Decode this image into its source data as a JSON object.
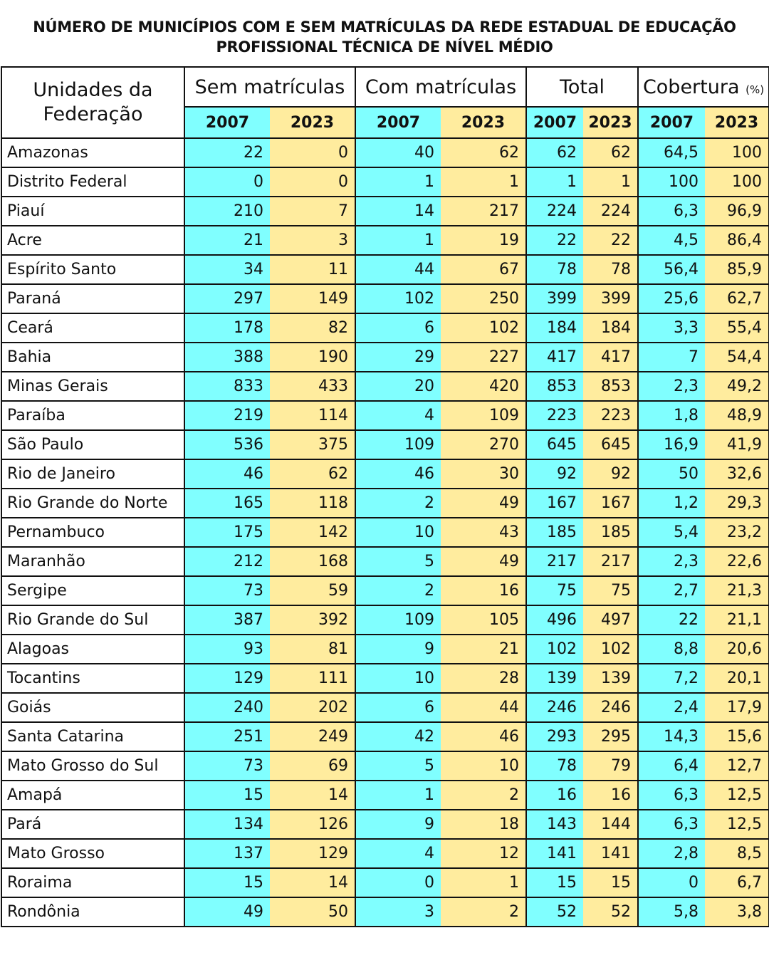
{
  "title_line1": "NÚMERO DE MUNICÍPIOS COM E SEM MATRÍCULAS DA REDE ESTADUAL DE EDUCAÇÃO",
  "title_line2": "PROFISSIONAL TÉCNICA DE NÍVEL MÉDIO",
  "colors": {
    "year_2007": "#80ffff",
    "year_2023": "#ffec9e",
    "border": "#111111"
  },
  "chart_data": {
    "type": "table",
    "row_header_label_line1": "Unidades da",
    "row_header_label_line2": "Federação",
    "groups": [
      {
        "label": "Sem matrículas",
        "unit": ""
      },
      {
        "label": "Com matrículas",
        "unit": ""
      },
      {
        "label": "Total",
        "unit": ""
      },
      {
        "label": "Cobertura",
        "unit": "(%)"
      }
    ],
    "years": [
      "2007",
      "2023"
    ],
    "rows": [
      {
        "uf": "Amazonas",
        "values": [
          "22",
          "0",
          "40",
          "62",
          "62",
          "62",
          "64,5",
          "100"
        ]
      },
      {
        "uf": "Distrito Federal",
        "values": [
          "0",
          "0",
          "1",
          "1",
          "1",
          "1",
          "100",
          "100"
        ]
      },
      {
        "uf": "Piauí",
        "values": [
          "210",
          "7",
          "14",
          "217",
          "224",
          "224",
          "6,3",
          "96,9"
        ]
      },
      {
        "uf": "Acre",
        "values": [
          "21",
          "3",
          "1",
          "19",
          "22",
          "22",
          "4,5",
          "86,4"
        ]
      },
      {
        "uf": "Espírito Santo",
        "values": [
          "34",
          "11",
          "44",
          "67",
          "78",
          "78",
          "56,4",
          "85,9"
        ]
      },
      {
        "uf": "Paraná",
        "values": [
          "297",
          "149",
          "102",
          "250",
          "399",
          "399",
          "25,6",
          "62,7"
        ]
      },
      {
        "uf": "Ceará",
        "values": [
          "178",
          "82",
          "6",
          "102",
          "184",
          "184",
          "3,3",
          "55,4"
        ]
      },
      {
        "uf": "Bahia",
        "values": [
          "388",
          "190",
          "29",
          "227",
          "417",
          "417",
          "7",
          "54,4"
        ]
      },
      {
        "uf": "Minas Gerais",
        "values": [
          "833",
          "433",
          "20",
          "420",
          "853",
          "853",
          "2,3",
          "49,2"
        ]
      },
      {
        "uf": "Paraíba",
        "values": [
          "219",
          "114",
          "4",
          "109",
          "223",
          "223",
          "1,8",
          "48,9"
        ]
      },
      {
        "uf": "São Paulo",
        "values": [
          "536",
          "375",
          "109",
          "270",
          "645",
          "645",
          "16,9",
          "41,9"
        ]
      },
      {
        "uf": "Rio de Janeiro",
        "values": [
          "46",
          "62",
          "46",
          "30",
          "92",
          "92",
          "50",
          "32,6"
        ]
      },
      {
        "uf": "Rio Grande do Norte",
        "values": [
          "165",
          "118",
          "2",
          "49",
          "167",
          "167",
          "1,2",
          "29,3"
        ]
      },
      {
        "uf": "Pernambuco",
        "values": [
          "175",
          "142",
          "10",
          "43",
          "185",
          "185",
          "5,4",
          "23,2"
        ]
      },
      {
        "uf": "Maranhão",
        "values": [
          "212",
          "168",
          "5",
          "49",
          "217",
          "217",
          "2,3",
          "22,6"
        ]
      },
      {
        "uf": "Sergipe",
        "values": [
          "73",
          "59",
          "2",
          "16",
          "75",
          "75",
          "2,7",
          "21,3"
        ]
      },
      {
        "uf": "Rio Grande do Sul",
        "values": [
          "387",
          "392",
          "109",
          "105",
          "496",
          "497",
          "22",
          "21,1"
        ]
      },
      {
        "uf": "Alagoas",
        "values": [
          "93",
          "81",
          "9",
          "21",
          "102",
          "102",
          "8,8",
          "20,6"
        ]
      },
      {
        "uf": "Tocantins",
        "values": [
          "129",
          "111",
          "10",
          "28",
          "139",
          "139",
          "7,2",
          "20,1"
        ]
      },
      {
        "uf": "Goiás",
        "values": [
          "240",
          "202",
          "6",
          "44",
          "246",
          "246",
          "2,4",
          "17,9"
        ]
      },
      {
        "uf": "Santa Catarina",
        "values": [
          "251",
          "249",
          "42",
          "46",
          "293",
          "295",
          "14,3",
          "15,6"
        ]
      },
      {
        "uf": "Mato Grosso do Sul",
        "values": [
          "73",
          "69",
          "5",
          "10",
          "78",
          "79",
          "6,4",
          "12,7"
        ]
      },
      {
        "uf": "Amapá",
        "values": [
          "15",
          "14",
          "1",
          "2",
          "16",
          "16",
          "6,3",
          "12,5"
        ]
      },
      {
        "uf": "Pará",
        "values": [
          "134",
          "126",
          "9",
          "18",
          "143",
          "144",
          "6,3",
          "12,5"
        ]
      },
      {
        "uf": "Mato Grosso",
        "values": [
          "137",
          "129",
          "4",
          "12",
          "141",
          "141",
          "2,8",
          "8,5"
        ]
      },
      {
        "uf": "Roraima",
        "values": [
          "15",
          "14",
          "0",
          "1",
          "15",
          "15",
          "0",
          "6,7"
        ]
      },
      {
        "uf": "Rondônia",
        "values": [
          "49",
          "50",
          "3",
          "2",
          "52",
          "52",
          "5,8",
          "3,8"
        ]
      }
    ]
  }
}
